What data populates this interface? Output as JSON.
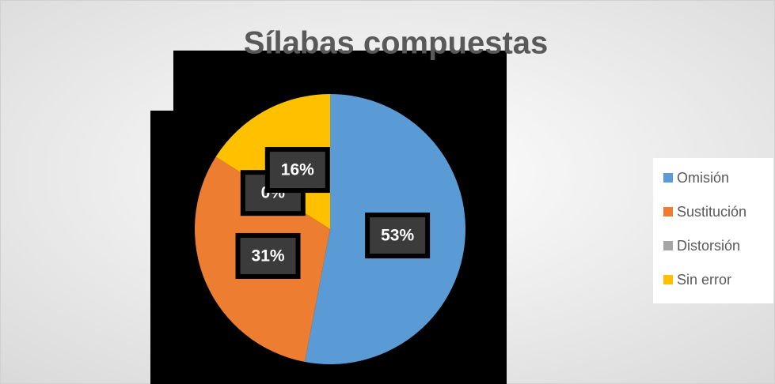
{
  "chart_data": {
    "type": "pie",
    "title": "Sílabas compuestas",
    "categories": [
      "Omisión",
      "Sustitución",
      "Distorsión",
      "Sin error"
    ],
    "values": [
      53,
      31,
      0,
      16
    ],
    "value_labels": [
      "53%",
      "31%",
      "0%",
      "16%"
    ],
    "colors": [
      "#5b9bd5",
      "#ed7d31",
      "#a5a5a5",
      "#ffc000"
    ],
    "legend": "right"
  }
}
